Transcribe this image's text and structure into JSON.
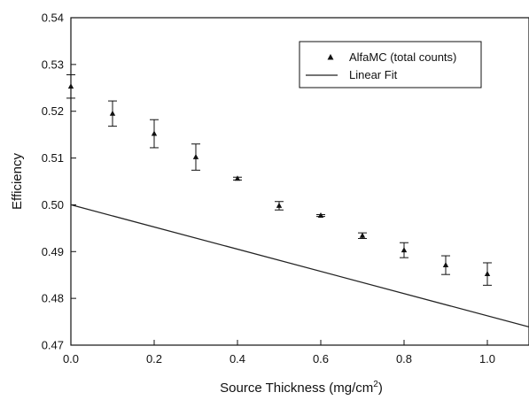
{
  "chart_data": {
    "type": "scatter",
    "xlabel": "Source Thickness (mg/cm",
    "xlabel_sup": "2",
    "xlabel_close": ")",
    "ylabel": "Efficiency",
    "xlim": [
      0.0,
      1.1
    ],
    "ylim": [
      0.47,
      0.54
    ],
    "x_ticks": [
      "0.0",
      "0.2",
      "0.4",
      "0.6",
      "0.8",
      "1.0"
    ],
    "y_ticks": [
      "0.47",
      "0.48",
      "0.49",
      "0.50",
      "0.51",
      "0.52",
      "0.53",
      "0.54"
    ],
    "grid": false,
    "legend_position": "top-right",
    "series": [
      {
        "name": "AlfaMC (total counts)",
        "kind": "points-with-error-bars",
        "marker": "triangle",
        "x": [
          0.0,
          0.1,
          0.2,
          0.3,
          0.4,
          0.5,
          0.6,
          0.7,
          0.8,
          0.9,
          1.0
        ],
        "y": [
          0.5253,
          0.5195,
          0.5152,
          0.5102,
          0.5056,
          0.4998,
          0.4977,
          0.4934,
          0.4903,
          0.4871,
          0.4852
        ],
        "err": [
          0.0025,
          0.0027,
          0.003,
          0.0028,
          0.0003,
          0.0009,
          0.0002,
          0.0006,
          0.0016,
          0.002,
          0.0024
        ]
      },
      {
        "name": "Linear Fit",
        "kind": "line",
        "x": [
          0.0,
          1.1
        ],
        "y": [
          0.5,
          0.4739
        ]
      }
    ],
    "colors": {
      "axis": "#111111",
      "marker": "#111111",
      "line": "#222222"
    }
  }
}
